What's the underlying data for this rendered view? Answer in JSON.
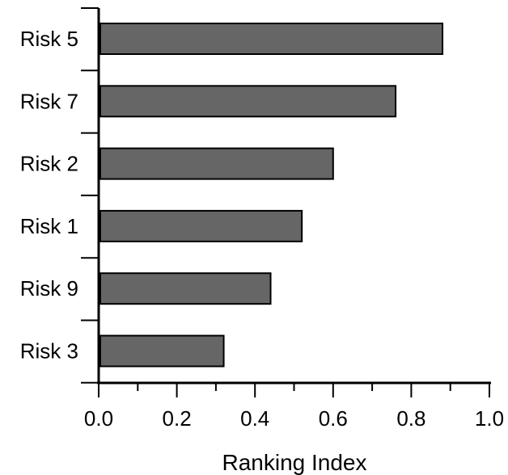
{
  "chart_data": {
    "type": "bar",
    "orientation": "horizontal",
    "categories": [
      "Risk 5",
      "Risk 7",
      "Risk 2",
      "Risk 1",
      "Risk 9",
      "Risk 3"
    ],
    "values": [
      0.88,
      0.76,
      0.6,
      0.52,
      0.44,
      0.32
    ],
    "xlabel": "Ranking Index",
    "ylabel": "",
    "xlim": [
      0.0,
      1.0
    ],
    "xticks": [
      "0.0",
      "0.2",
      "0.4",
      "0.6",
      "0.8",
      "1.0"
    ],
    "grid": false,
    "bar_color": "#666666",
    "bar_edge_color": "#000000"
  }
}
